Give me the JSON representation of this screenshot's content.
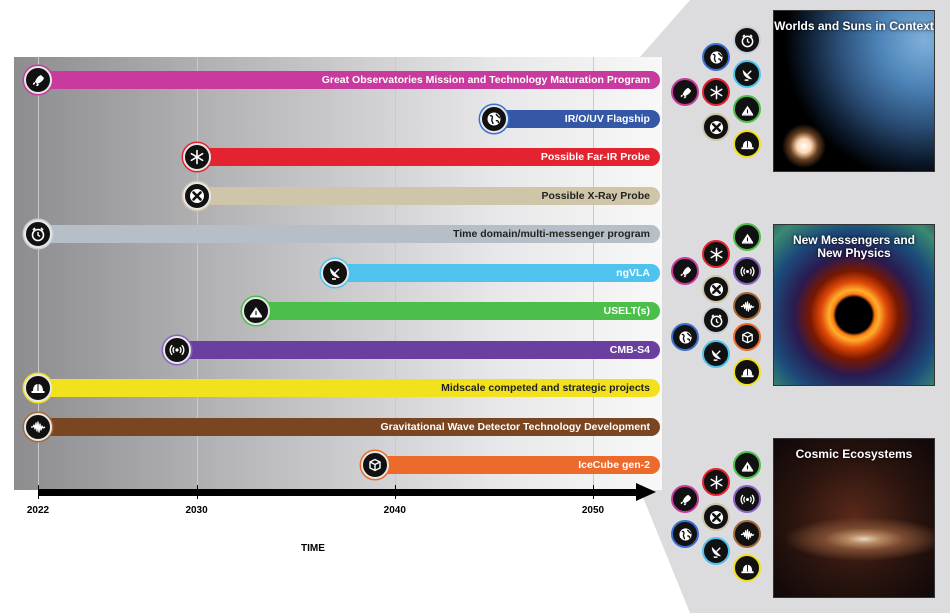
{
  "programs": [
    {
      "label": "Great Observatories Mission and Technology Maturation Program",
      "icon": "rocket-icon",
      "color": "#c93a9e",
      "ring": "#c93a9e",
      "start": 2022
    },
    {
      "label": "IR/O/UV Flagship",
      "icon": "globe-icon",
      "color": "#3457a6",
      "ring": "#3b6fd2",
      "start": 2045
    },
    {
      "label": "Possible Far-IR Probe",
      "icon": "snowflake-icon",
      "color": "#e3232f",
      "ring": "#e3232f",
      "start": 2030
    },
    {
      "label": "Possible X-Ray Probe",
      "icon": "x-ray-icon",
      "color": "#cfc5a9",
      "ring": "#cfc5a9",
      "start": 2030
    },
    {
      "label": "Time domain/multi-messenger program",
      "icon": "clock-icon",
      "color": "#b6bfc8",
      "ring": "#c8d0d8",
      "start": 2022
    },
    {
      "label": "ngVLA",
      "icon": "radio-dish-icon",
      "color": "#4fc3ed",
      "ring": "#4fc3ed",
      "start": 2037
    },
    {
      "label": "USELT(s)",
      "icon": "telescope-dome-icon",
      "color": "#4bbf4a",
      "ring": "#4bbf4a",
      "start": 2033
    },
    {
      "label": "CMB-S4",
      "icon": "signal-waves-icon",
      "color": "#6a3fa0",
      "ring": "#8a61c2",
      "start": 2029
    },
    {
      "label": "Midscale competed and strategic projects",
      "icon": "hard-hat-icon",
      "color": "#f2e21d",
      "ring": "#f2e21d",
      "start": 2022
    },
    {
      "label": "Gravitational Wave Detector Technology Development",
      "icon": "gravitational-wave-icon",
      "color": "#7a4521",
      "ring": "#a56a3a",
      "start": 2022
    },
    {
      "label": "IceCube gen-2",
      "icon": "ice-cube-icon",
      "color": "#ec6a2b",
      "ring": "#ec6a2b",
      "start": 2039
    }
  ],
  "axis": {
    "label": "TIME",
    "start": 2022,
    "end": 2055,
    "ticks": [
      2022,
      2030,
      2040,
      2050
    ]
  },
  "themes": [
    {
      "title": "Worlds and Suns in Context",
      "icons": [
        "clock-icon",
        "globe-icon",
        "radio-dish-icon",
        "rocket-icon",
        "snowflake-icon",
        "telescope-dome-icon",
        "x-ray-icon",
        "hard-hat-icon"
      ]
    },
    {
      "title": "New Messengers and New Physics",
      "icons": [
        "telescope-dome-icon",
        "snowflake-icon",
        "rocket-icon",
        "signal-waves-icon",
        "x-ray-icon",
        "gravitational-wave-icon",
        "clock-icon",
        "globe-icon",
        "ice-cube-icon",
        "radio-dish-icon",
        "hard-hat-icon"
      ]
    },
    {
      "title": "Cosmic Ecosystems",
      "icons": [
        "telescope-dome-icon",
        "snowflake-icon",
        "rocket-icon",
        "signal-waves-icon",
        "x-ray-icon",
        "globe-icon",
        "gravitational-wave-icon",
        "radio-dish-icon",
        "hard-hat-icon"
      ]
    }
  ]
}
